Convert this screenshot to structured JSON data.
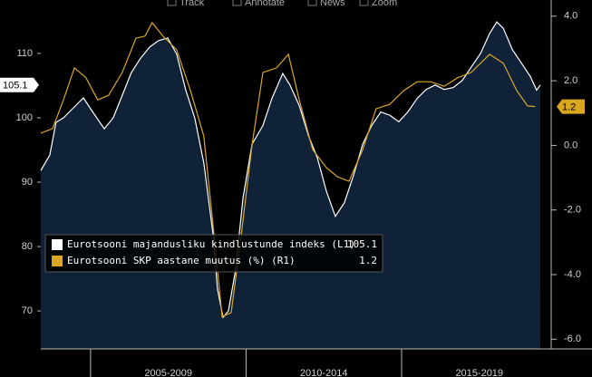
{
  "toolbar": [
    "Track",
    "Annotate",
    "News",
    "Zoom"
  ],
  "chart_data": {
    "type": "line",
    "xlim": [
      2003.4,
      2019.81
    ],
    "ylim": [
      64.1,
      118.3
    ],
    "yticks": [
      70,
      80,
      90,
      100,
      110
    ],
    "y2lim": [
      -6.3,
      4.5
    ],
    "y2ticks": [
      {
        "value": 4,
        "label": "4.0"
      },
      {
        "value": 2,
        "label": "2.0"
      },
      {
        "value": 0,
        "label": "0.0"
      },
      {
        "value": -2,
        "label": "-2.0"
      },
      {
        "value": -4,
        "label": "-4.0"
      },
      {
        "value": -6,
        "label": "-6.0"
      }
    ],
    "xbands": [
      {
        "label": "2005-2009",
        "from": 2005,
        "to": 2010
      },
      {
        "label": "2010-2014",
        "from": 2010,
        "to": 2015
      },
      {
        "label": "2015-2019",
        "from": 2015,
        "to": 2020
      }
    ],
    "legend": "bottom-left",
    "series": [
      {
        "name": "Eurotsooni majandusliku kindlustunde indeks (L1)",
        "color": "#ffffff",
        "fill": "#0f2238",
        "axis": "y",
        "x": [
          2003.4,
          2003.69,
          2003.89,
          2004.13,
          2004.42,
          2004.77,
          2005.0,
          2005.44,
          2005.73,
          2006.02,
          2006.31,
          2006.6,
          2006.9,
          2007.19,
          2007.48,
          2007.77,
          2008.06,
          2008.35,
          2008.64,
          2008.94,
          2009.08,
          2009.26,
          2009.43,
          2009.66,
          2009.9,
          2010.19,
          2010.54,
          2010.83,
          2011.18,
          2011.41,
          2011.71,
          2012.0,
          2012.29,
          2012.58,
          2012.87,
          2013.16,
          2013.45,
          2013.75,
          2014.04,
          2014.33,
          2014.62,
          2014.91,
          2015.2,
          2015.5,
          2015.79,
          2016.08,
          2016.37,
          2016.66,
          2016.95,
          2017.24,
          2017.54,
          2017.83,
          2018.06,
          2018.27,
          2018.56,
          2018.85,
          2019.14,
          2019.34,
          2019.46
        ],
        "values": [
          91.8,
          94.2,
          99.3,
          100,
          101.4,
          103.1,
          101.4,
          98.3,
          100,
          103.5,
          107,
          109.2,
          111,
          112,
          112.4,
          109.9,
          104.3,
          100,
          93,
          81.8,
          73.4,
          69,
          70,
          76.3,
          87.5,
          95.9,
          98.8,
          103,
          106.9,
          105.1,
          101.9,
          97.3,
          93.8,
          88.6,
          84.7,
          86.8,
          91,
          95.9,
          98.8,
          100.9,
          100.4,
          99.4,
          100.9,
          103,
          104.4,
          105.1,
          104.4,
          104.7,
          105.8,
          107.9,
          110,
          113.1,
          114.9,
          113.9,
          110.6,
          108.5,
          106.4,
          104.3,
          105.1
        ]
      },
      {
        "name": "Eurotsooni SKP aastane muutus (%) (R1)",
        "color": "#d9a820",
        "axis": "y2",
        "x": [
          2003.4,
          2003.78,
          2004.13,
          2004.48,
          2004.85,
          2005.23,
          2005.58,
          2006.02,
          2006.46,
          2006.75,
          2006.98,
          2007.33,
          2007.77,
          2008.21,
          2008.64,
          2008.94,
          2009.23,
          2009.52,
          2009.81,
          2010.19,
          2010.54,
          2010.98,
          2011.36,
          2011.71,
          2012.14,
          2012.58,
          2012.93,
          2013.31,
          2013.75,
          2014.18,
          2014.62,
          2015.06,
          2015.5,
          2015.93,
          2016.37,
          2016.81,
          2017.24,
          2017.83,
          2018.27,
          2018.7,
          2019.05,
          2019.29
        ],
        "values": [
          0.38,
          0.52,
          1.41,
          2.4,
          2.1,
          1.41,
          1.55,
          2.26,
          3.32,
          3.38,
          3.8,
          3.38,
          2.96,
          1.7,
          0.29,
          -2.5,
          -5.3,
          -5.18,
          -3.07,
          0.01,
          2.26,
          2.4,
          2.82,
          1.41,
          -0.13,
          -0.69,
          -0.97,
          -1.11,
          -0.13,
          1.13,
          1.27,
          1.69,
          1.97,
          1.97,
          1.83,
          2.1,
          2.26,
          2.82,
          2.54,
          1.7,
          1.22,
          1.2
        ]
      }
    ]
  }
}
